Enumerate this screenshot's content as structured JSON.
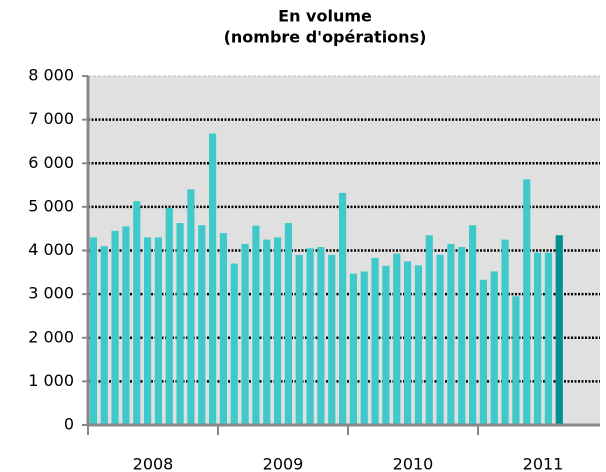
{
  "chart_data": {
    "type": "bar",
    "title": [
      "En volume",
      "(nombre d'opérations)"
    ],
    "categories": [
      null,
      null,
      null,
      null,
      null,
      null,
      "2008",
      null,
      null,
      null,
      null,
      null,
      null,
      null,
      null,
      null,
      null,
      null,
      "2009",
      null,
      null,
      null,
      null,
      null,
      null,
      null,
      null,
      null,
      null,
      null,
      "2010",
      null,
      null,
      null,
      null,
      null,
      null,
      null,
      null,
      null,
      null,
      null,
      "2011",
      null
    ],
    "values": [
      4300,
      4100,
      4450,
      4550,
      5130,
      4300,
      4300,
      4980,
      4630,
      5400,
      4580,
      6680,
      4400,
      3700,
      4150,
      4570,
      4250,
      4300,
      4630,
      3900,
      4050,
      4080,
      3900,
      5320,
      3470,
      3520,
      3830,
      3650,
      3930,
      3750,
      3660,
      4350,
      3900,
      4150,
      4080,
      4580,
      3330,
      3520,
      4250,
      2950,
      5630,
      3950,
      3950,
      4350
    ],
    "colors": [
      "#40c9cb",
      "#40c9cb",
      "#40c9cb",
      "#40c9cb",
      "#40c9cb",
      "#40c9cb",
      "#40c9cb",
      "#40c9cb",
      "#40c9cb",
      "#40c9cb",
      "#40c9cb",
      "#40c9cb",
      "#40c9cb",
      "#40c9cb",
      "#40c9cb",
      "#40c9cb",
      "#40c9cb",
      "#40c9cb",
      "#40c9cb",
      "#40c9cb",
      "#40c9cb",
      "#40c9cb",
      "#40c9cb",
      "#40c9cb",
      "#40c9cb",
      "#40c9cb",
      "#40c9cb",
      "#40c9cb",
      "#40c9cb",
      "#40c9cb",
      "#40c9cb",
      "#40c9cb",
      "#40c9cb",
      "#40c9cb",
      "#40c9cb",
      "#40c9cb",
      "#40c9cb",
      "#40c9cb",
      "#40c9cb",
      "#40c9cb",
      "#40c9cb",
      "#40c9cb",
      "#40c9cb",
      "#00908f"
    ],
    "ylim": [
      0,
      8000
    ],
    "yticks": [
      0,
      {
        "value": 1000,
        "label": "1 000"
      },
      {
        "value": 2000,
        "label": "2 000"
      },
      {
        "value": 3000,
        "label": "3 000"
      },
      {
        "value": 4000,
        "label": "4 000"
      },
      {
        "value": 5000,
        "label": "5 000"
      },
      {
        "value": 6000,
        "label": "6 000"
      },
      {
        "value": 7000,
        "label": "7 000"
      },
      {
        "value": 8000,
        "label": "8 000"
      }
    ],
    "grid": true
  }
}
